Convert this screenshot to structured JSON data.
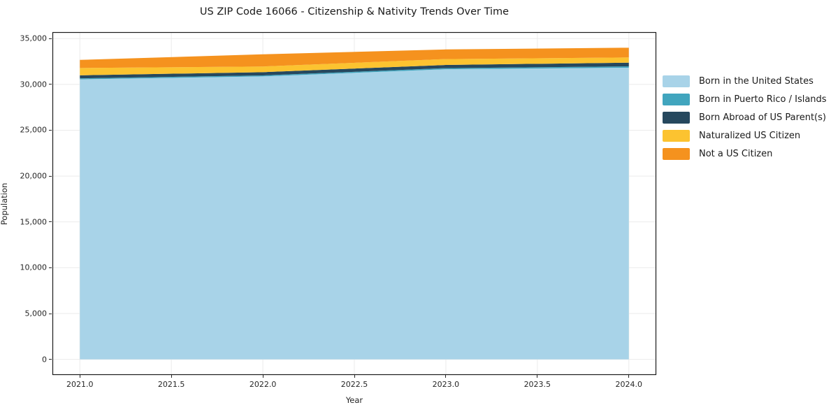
{
  "figure": {
    "background": "#ffffff"
  },
  "chart_data": {
    "type": "area",
    "stacked": true,
    "title": "US ZIP Code 16066 - Citizenship & Nativity Trends Over Time",
    "xlabel": "Year",
    "ylabel": "Population",
    "x": [
      2021,
      2022,
      2023,
      2024
    ],
    "series": [
      {
        "name": "Born in the United States",
        "color": "#a8d3e8",
        "values": [
          30550,
          30870,
          31650,
          31820
        ]
      },
      {
        "name": "Born in Puerto Rico / Islands",
        "color": "#41a5be",
        "values": [
          110,
          110,
          120,
          150
        ]
      },
      {
        "name": "Born Abroad of US Parent(s)",
        "color": "#26485e",
        "values": [
          330,
          350,
          350,
          400
        ]
      },
      {
        "name": "Naturalized US Citizen",
        "color": "#fcc330",
        "values": [
          800,
          620,
          640,
          570
        ]
      },
      {
        "name": "Not a US Citizen",
        "color": "#f5921e",
        "values": [
          880,
          1330,
          1050,
          1060
        ]
      }
    ],
    "xlim": [
      2020.85,
      2024.15
    ],
    "ylim": [
      -1700,
      35700
    ],
    "xticks": [
      2021.0,
      2021.5,
      2022.0,
      2022.5,
      2023.0,
      2023.5,
      2024.0
    ],
    "xtick_labels": [
      "2021.0",
      "2021.5",
      "2022.0",
      "2022.5",
      "2023.0",
      "2023.5",
      "2024.0"
    ],
    "yticks": [
      0,
      5000,
      10000,
      15000,
      20000,
      25000,
      30000,
      35000
    ],
    "ytick_labels": [
      "0",
      "5,000",
      "10,000",
      "15,000",
      "20,000",
      "25,000",
      "30,000",
      "35,000"
    ],
    "grid": true,
    "grid_color": "#ebebeb",
    "spine_color": "#1a1a1a",
    "legend_position": "right"
  }
}
